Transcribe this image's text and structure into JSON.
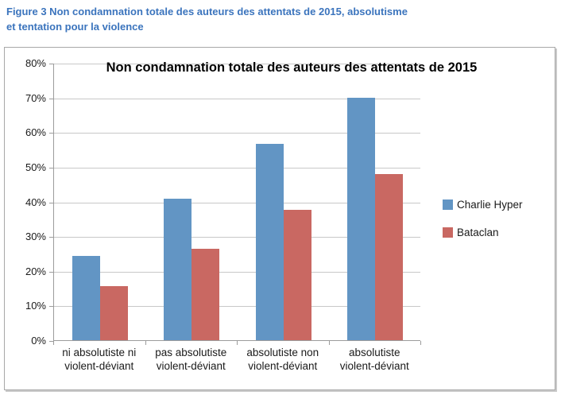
{
  "caption": {
    "line1": "Figure 3 Non condamnation totale des auteurs des attentats de 2015, absolutisme",
    "line2": "et tentation pour la violence"
  },
  "chart_data": {
    "type": "bar",
    "title": "Non condamnation totale des auteurs des attentats de 2015",
    "categories": [
      "ni absolutiste ni\nviolent-déviant",
      "pas absolutiste\nviolent-déviant",
      "absolutiste non\nviolent-déviant",
      "absolutiste\nviolent-déviant"
    ],
    "series": [
      {
        "name": "Charlie Hyper",
        "color": "#6295C4",
        "values": [
          24.4,
          40.7,
          56.7,
          70.0
        ]
      },
      {
        "name": "Bataclan",
        "color": "#C96862",
        "values": [
          15.6,
          26.4,
          37.5,
          47.8
        ]
      }
    ],
    "ylim": [
      0,
      80
    ],
    "yticks": [
      "0%",
      "10%",
      "20%",
      "30%",
      "40%",
      "50%",
      "60%",
      "70%",
      "80%"
    ],
    "grid": true,
    "legend_position": "right",
    "xlabel": "",
    "ylabel": ""
  },
  "colors": {
    "caption_blue": "#3B74BD",
    "gridline": "#C8C8C8",
    "axis": "#9C9C9C",
    "chart_border": "#A8A8A8"
  }
}
